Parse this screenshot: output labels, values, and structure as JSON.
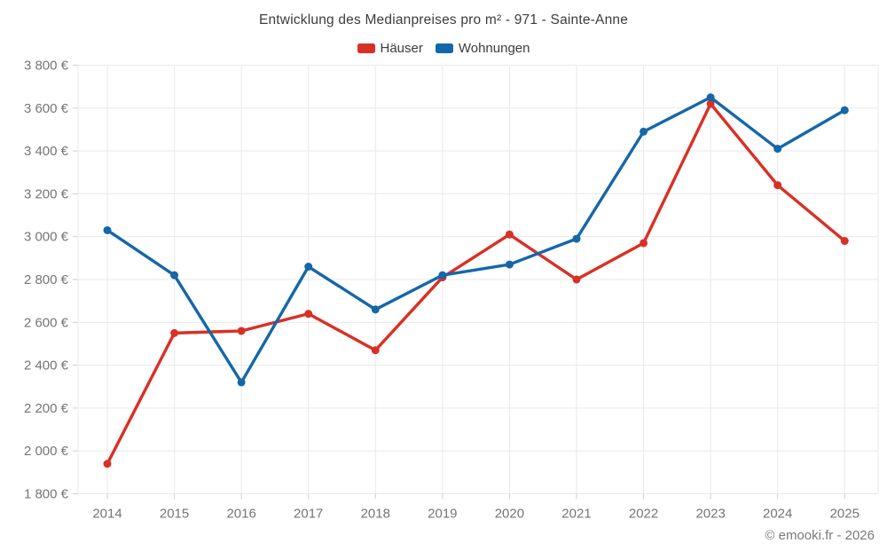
{
  "title": "Entwicklung des Medianpreises pro m² - 971 - Sainte-Anne",
  "footer": "© emooki.fr - 2026",
  "legend": {
    "items": [
      {
        "label": "Häuser",
        "color": "#d93025"
      },
      {
        "label": "Wohnungen",
        "color": "#1567a8"
      }
    ]
  },
  "colors": {
    "haeuser": "#d93025",
    "wohnungen": "#1567a8",
    "grid": "#e9e9e9",
    "tick": "#cfcfcf",
    "axis_text": "#757575",
    "title_text": "#3c3c3c",
    "footer_text": "#7a7a7a"
  },
  "chart_data": {
    "type": "line",
    "title": "Entwicklung des Medianpreises pro m² - 971 - Sainte-Anne",
    "categories": [
      "2014",
      "2015",
      "2016",
      "2017",
      "2018",
      "2019",
      "2020",
      "2021",
      "2022",
      "2023",
      "2024",
      "2025"
    ],
    "series": [
      {
        "name": "Häuser",
        "color": "#d93025",
        "values": [
          1940,
          2550,
          2560,
          2640,
          2470,
          2810,
          3010,
          2800,
          2970,
          3620,
          3240,
          2980
        ]
      },
      {
        "name": "Wohnungen",
        "color": "#1567a8",
        "values": [
          3030,
          2820,
          2320,
          2860,
          2660,
          2820,
          2870,
          2990,
          3490,
          3650,
          3410,
          3590
        ]
      }
    ],
    "xlabel": "",
    "ylabel": "",
    "ylim": [
      1800,
      3800
    ],
    "ytick_step": 200,
    "yticks": [
      {
        "value": 1800,
        "label": "1 800 €"
      },
      {
        "value": 2000,
        "label": "2 000 €"
      },
      {
        "value": 2200,
        "label": "2 200 €"
      },
      {
        "value": 2400,
        "label": "2 400 €"
      },
      {
        "value": 2600,
        "label": "2 600 €"
      },
      {
        "value": 2800,
        "label": "2 800 €"
      },
      {
        "value": 3000,
        "label": "3 000 €"
      },
      {
        "value": 3200,
        "label": "3 200 €"
      },
      {
        "value": 3400,
        "label": "3 400 €"
      },
      {
        "value": 3600,
        "label": "3 600 €"
      },
      {
        "value": 3800,
        "label": "3 800 €"
      }
    ],
    "grid": true,
    "legend_position": "top-center",
    "currency": "€"
  }
}
